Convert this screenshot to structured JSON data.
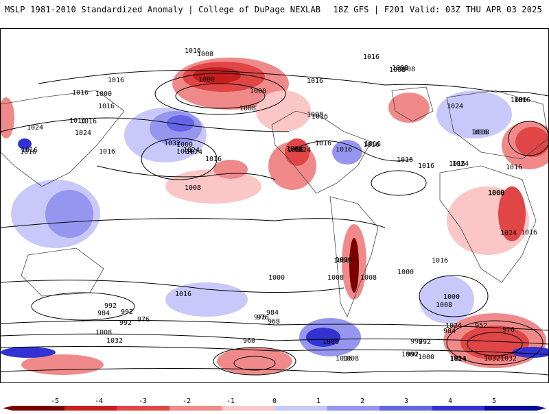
{
  "header": {
    "title_left": "MSLP 1981-2010 Standardized Anomaly | College of DuPage NEXLAB",
    "title_right": "18Z GFS | F201 Valid: 03Z THU APR 03 2025"
  },
  "map": {
    "contour_labels": [
      "1016",
      "1008",
      "1016",
      "1000",
      "1016",
      "1000",
      "1016",
      "1016",
      "1016",
      "1008",
      "1000",
      "1016",
      "1024",
      "1016",
      "1016",
      "1024",
      "1016",
      "1016",
      "1000",
      "1024",
      "1024",
      "1008",
      "1032",
      "1024",
      "1016",
      "1008",
      "1016",
      "1016",
      "1024",
      "1016",
      "1008",
      "1008",
      "1016",
      "1008",
      "1008",
      "1016",
      "1016",
      "1024",
      "1016",
      "1008",
      "1024",
      "1016",
      "1016",
      "1000",
      "1016",
      "1016",
      "1016",
      "1016",
      "1008",
      "1000",
      "1008",
      "1016",
      "1008",
      "1000",
      "992",
      "1000",
      "992",
      "984",
      "992",
      "976",
      "976",
      "968",
      "984",
      "976",
      "992",
      "1008",
      "1032",
      "960",
      "1000",
      "1016",
      "1008",
      "1024",
      "1000",
      "1016",
      "1008",
      "992",
      "1024",
      "1032",
      "1024",
      "1000",
      "992",
      "984",
      "952",
      "976",
      "1008",
      "1000",
      "1016",
      "1032",
      "1024"
    ],
    "colors": {
      "neg5": "#7a0000",
      "neg4": "#c81e1e",
      "neg3": "#e04646",
      "neg2": "#f08a8a",
      "neg1": "#fbc6c6",
      "pos1": "#c8c8fa",
      "pos2": "#9696f0",
      "pos3": "#6464e6",
      "pos4": "#3232d2",
      "pos5": "#0a0a9a",
      "land_outline": "#444444",
      "contour": "#000000"
    }
  },
  "colorbar": {
    "ticks": [
      "-5",
      "-4",
      "-3",
      "-2",
      "-1",
      "0",
      "1",
      "2",
      "3",
      "4",
      "5"
    ]
  }
}
